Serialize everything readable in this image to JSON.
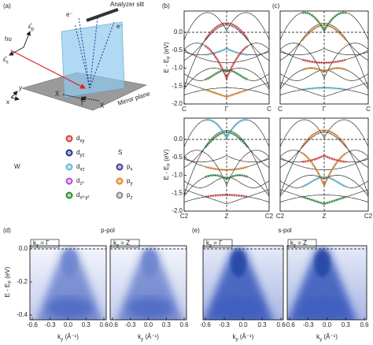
{
  "panel_a": {
    "label": "(a)",
    "photon": "hυ",
    "eps_p": {
      "main": "ε̂",
      "sub": "p"
    },
    "eps_s": {
      "main": "ε̂",
      "sub": "s"
    },
    "electron_left": "e⁻",
    "electron_right": "e⁻",
    "slit": "Analyzer slit",
    "mirror": "Mirror plane",
    "k_left": "X̄",
    "k_center": "Γ̄",
    "k_right": "X̄",
    "axis_y": "y",
    "axis_x": "x"
  },
  "legend": {
    "W": {
      "label": "W",
      "items": [
        {
          "name": {
            "main": "d",
            "sub": "xy"
          },
          "color": "#e0393e"
        },
        {
          "name": {
            "main": "d",
            "sub": "yz"
          },
          "color": "#23338f"
        },
        {
          "name": {
            "main": "d",
            "sub": "xz"
          },
          "color": "#5bc0de"
        },
        {
          "name": {
            "main": "d",
            "sub": "z²"
          },
          "color": "#b156c8"
        },
        {
          "name": {
            "main": "d",
            "sub": "x²-y²"
          },
          "color": "#2e8b3a"
        }
      ]
    },
    "S": {
      "label": "S",
      "items": [
        {
          "name": {
            "main": "p",
            "sub": "x"
          },
          "color": "#4b3f8f"
        },
        {
          "name": {
            "main": "p",
            "sub": "y"
          },
          "color": "#e8882a"
        },
        {
          "name": {
            "main": "p",
            "sub": "z"
          },
          "color": "#8c8c8c"
        }
      ]
    }
  },
  "panel_b": {
    "label": "(b)",
    "top": {
      "ylabel": {
        "main": "E - E",
        "sub": "F",
        "rest": " (eV)"
      },
      "yticks": [
        "0.0",
        "-0.5",
        "-1.0",
        "-1.5",
        "-2.0"
      ],
      "xlabels": [
        "C",
        "Γ",
        "C"
      ]
    },
    "bottom": {
      "ylabel": {
        "main": "E - E",
        "sub": "F",
        "rest": " (eV)"
      },
      "yticks": [
        "0.0",
        "-0.5",
        "-1.0",
        "-1.5",
        "-2.0"
      ],
      "xlabels": [
        "C2",
        "Z",
        "C2"
      ]
    }
  },
  "panel_c": {
    "label": "(c)",
    "top": {
      "xlabels": [
        "C",
        "Γ",
        "C"
      ]
    },
    "bottom": {
      "xlabels": [
        "C2",
        "Z",
        "C2"
      ]
    }
  },
  "panel_d": {
    "label": "(d)",
    "title": "p-pol",
    "ylabel": {
      "main": "E - E",
      "sub": "F",
      "rest": " (eV)"
    },
    "yticks": [
      "0.0",
      "-0.2",
      "-0.4"
    ],
    "images": [
      {
        "inset": {
          "main": "k",
          "sub": "z",
          "rest": " = Γ"
        },
        "xticks": [
          "-0.6",
          "-0.3",
          "0.0",
          "0.3",
          "0.6"
        ],
        "xlabel": {
          "main": "k",
          "sub": "y",
          "rest": " (Å⁻¹)"
        }
      },
      {
        "inset": {
          "main": "k",
          "sub": "z",
          "rest": " = Z"
        },
        "xticks": [
          "-0.6",
          "-0.3",
          "0.0",
          "0.3",
          "0.6"
        ],
        "xlabel": {
          "main": "k",
          "sub": "y",
          "rest": " (Å⁻¹)"
        }
      }
    ]
  },
  "panel_e": {
    "label": "(e)",
    "title": "s-pol",
    "images": [
      {
        "inset": {
          "main": "k",
          "sub": "z",
          "rest": " = Γ"
        },
        "xticks": [
          "-0.6",
          "-0.3",
          "0.0",
          "0.3",
          "0.6"
        ],
        "xlabel": {
          "main": "k",
          "sub": "y",
          "rest": " (Å⁻¹)"
        }
      },
      {
        "inset": {
          "main": "k",
          "sub": "z",
          "rest": " = Z"
        },
        "xticks": [
          "-0.6",
          "-0.3",
          "0.0",
          "0.3",
          "0.6"
        ],
        "xlabel": {
          "main": "k",
          "sub": "y",
          "rest": " (Å⁻¹)"
        }
      }
    ]
  }
}
